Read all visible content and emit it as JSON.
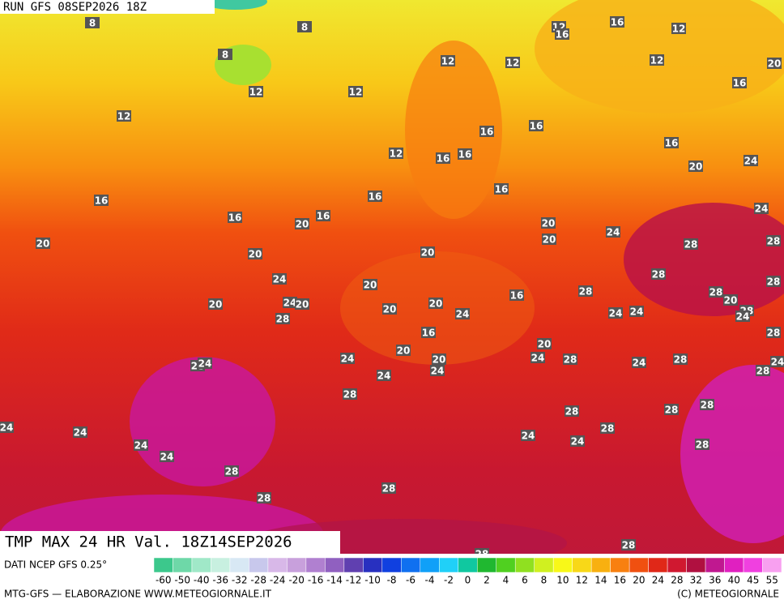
{
  "header": {
    "run": "RUN GFS 08SEP2026 18Z"
  },
  "title": "TMP MAX 24 HR Val. 18Z14SEP2026",
  "footer": {
    "source": "DATI NCEP GFS 0.25°",
    "credit": "MTG-GFS — ELABORAZIONE WWW.METEOGIORNALE.IT",
    "copyright": "(C) METEOGIORNALE"
  },
  "map_labels": [
    8,
    8,
    8,
    12,
    12,
    12,
    12,
    12,
    12,
    16,
    16,
    12,
    12,
    20,
    16,
    16,
    16,
    12,
    16,
    16,
    16,
    20,
    24,
    16,
    16,
    16,
    16,
    20,
    16,
    24,
    20,
    20,
    20,
    20,
    20,
    24,
    28,
    28,
    24,
    20,
    28,
    28,
    16,
    28,
    28,
    20,
    20,
    24,
    20,
    20,
    20,
    24,
    24,
    24,
    28,
    28,
    24,
    28,
    16,
    20,
    20,
    24,
    20,
    24,
    28,
    24,
    28,
    24,
    28,
    24,
    28,
    24,
    24,
    28,
    28,
    28,
    28,
    24,
    24,
    28,
    24,
    24,
    28,
    24,
    24,
    28,
    28,
    28,
    28,
    28
  ],
  "scale": {
    "labels": [
      -60,
      -50,
      -40,
      -36,
      -32,
      -28,
      -24,
      -20,
      -16,
      -14,
      -12,
      -10,
      -8,
      -6,
      -4,
      -2,
      0,
      2,
      4,
      6,
      8,
      10,
      12,
      14,
      16,
      20,
      24,
      28,
      32,
      36,
      40,
      45,
      55
    ],
    "colors": [
      "#3cc88c",
      "#6ed8a8",
      "#a0e8c8",
      "#c8f0e0",
      "#d8e8f4",
      "#c8c8ec",
      "#d8b8e8",
      "#c8a0dc",
      "#b080d0",
      "#9060c0",
      "#6040b0",
      "#2830c0",
      "#1040e0",
      "#1070f0",
      "#10a0f8",
      "#20d0f8",
      "#10c8a0",
      "#20b830",
      "#50d020",
      "#90e020",
      "#d0f020",
      "#f8f818",
      "#f8d818",
      "#f8b010",
      "#f88010",
      "#f05010",
      "#e02818",
      "#d01830",
      "#b01040",
      "#c01890",
      "#e020c0",
      "#f040e0",
      "#f8a0f0"
    ]
  }
}
